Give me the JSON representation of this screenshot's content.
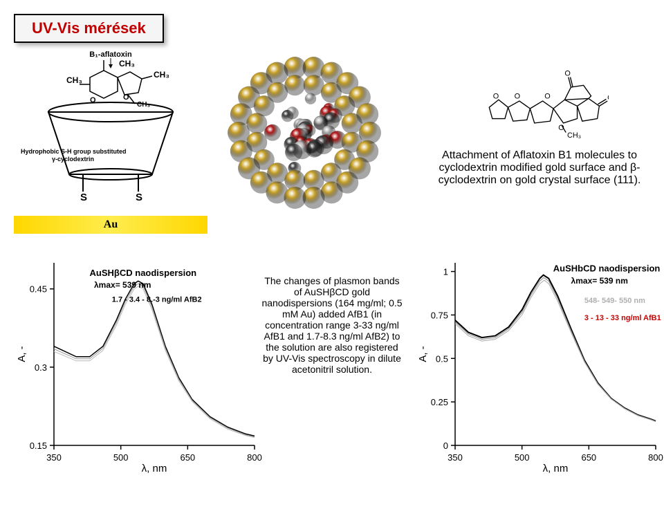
{
  "title": "UV-Vis mérések",
  "top": {
    "cyclodextrin": {
      "aflatoxin_label": "B₁-aflatoxin",
      "ch3_labels": [
        "CH₃",
        "CH₃",
        "CH₃",
        "CH₃"
      ],
      "o_labels": [
        "O",
        "O"
      ],
      "substitute_label": "Hydrophobic S-H group substituted γ-cyclodextrin",
      "s_labels": [
        "S",
        "S"
      ],
      "au_label": "Au"
    },
    "structural_formula": {
      "atoms": [
        "O",
        "O",
        "O",
        "O",
        "O",
        "O"
      ],
      "substituent": "CH₃"
    },
    "description": "Attachment of Aflatoxin B1 molecules to cyclodextrin modified gold surface and β-cyclodextrin on gold crystal surface (111)."
  },
  "chart_left": {
    "type": "line",
    "title": "AuSHβCD naodispersion",
    "lambda_label": "λmax= 539 nm",
    "series_note": "1.7 - 3.4 - 8.-3 ng/ml AfB2",
    "xlabel": "λ, nm",
    "ylabel": "A, -",
    "xlim": [
      350,
      800
    ],
    "ylim": [
      0.15,
      0.5
    ],
    "xticks": [
      350,
      500,
      650,
      800
    ],
    "yticks": [
      0.15,
      0.3,
      0.45
    ],
    "series": [
      {
        "color": "#000000",
        "width": 1.5,
        "data": [
          [
            350,
            0.34
          ],
          [
            400,
            0.32
          ],
          [
            430,
            0.32
          ],
          [
            460,
            0.34
          ],
          [
            490,
            0.39
          ],
          [
            510,
            0.43
          ],
          [
            530,
            0.46
          ],
          [
            539,
            0.465
          ],
          [
            550,
            0.46
          ],
          [
            570,
            0.42
          ],
          [
            600,
            0.34
          ],
          [
            630,
            0.28
          ],
          [
            660,
            0.238
          ],
          [
            700,
            0.205
          ],
          [
            740,
            0.185
          ],
          [
            780,
            0.172
          ],
          [
            800,
            0.168
          ]
        ]
      },
      {
        "color": "#999999",
        "width": 1,
        "data": [
          [
            350,
            0.335
          ],
          [
            400,
            0.316
          ],
          [
            430,
            0.316
          ],
          [
            460,
            0.336
          ],
          [
            490,
            0.385
          ],
          [
            510,
            0.425
          ],
          [
            530,
            0.455
          ],
          [
            539,
            0.46
          ],
          [
            550,
            0.455
          ],
          [
            570,
            0.415
          ],
          [
            600,
            0.336
          ],
          [
            630,
            0.277
          ],
          [
            660,
            0.236
          ],
          [
            700,
            0.203
          ],
          [
            740,
            0.183
          ],
          [
            780,
            0.17
          ],
          [
            800,
            0.166
          ]
        ]
      },
      {
        "color": "#bbbbbb",
        "width": 1,
        "data": [
          [
            350,
            0.33
          ],
          [
            400,
            0.312
          ],
          [
            430,
            0.312
          ],
          [
            460,
            0.332
          ],
          [
            490,
            0.38
          ],
          [
            510,
            0.42
          ],
          [
            530,
            0.45
          ],
          [
            539,
            0.455
          ],
          [
            550,
            0.45
          ],
          [
            570,
            0.41
          ],
          [
            600,
            0.332
          ],
          [
            630,
            0.274
          ],
          [
            660,
            0.234
          ],
          [
            700,
            0.201
          ],
          [
            740,
            0.181
          ],
          [
            780,
            0.169
          ],
          [
            800,
            0.165
          ]
        ]
      }
    ],
    "curve_colors": [
      "#000000",
      "#999999",
      "#bbbbbb"
    ],
    "bg": "#ffffff",
    "axis_color": "#000000",
    "tick_fontsize": 13,
    "label_fontsize": 15,
    "title_fontsize": 13
  },
  "middle_text": "The changes of plasmon bands of AuSHβCD gold nanodispersions (164 mg/ml; 0.5 mM Au) added AfB1 (in concentration range 3-33 ng/ml AfB1 and 1.7-8.3 ng/ml AfB2) to the solution are also registered by UV-Vis spectroscopy in dilute acetonitril solution.",
  "chart_right": {
    "type": "line",
    "title": "AuSHbCD naodispersion",
    "lambda_label": "λmax= 539 nm",
    "peak_note": "548- 549- 550 nm",
    "series_note": "3 - 13 - 33 ng/ml AfB1",
    "xlabel": "λ, nm",
    "ylabel": "A, -",
    "xlim": [
      350,
      800
    ],
    "ylim": [
      0,
      1.05
    ],
    "xticks": [
      350,
      500,
      650,
      800
    ],
    "yticks": [
      0,
      0.25,
      0.5,
      0.75,
      1
    ],
    "series": [
      {
        "color": "#000000",
        "width": 2,
        "data": [
          [
            350,
            0.72
          ],
          [
            380,
            0.65
          ],
          [
            410,
            0.62
          ],
          [
            440,
            0.63
          ],
          [
            470,
            0.68
          ],
          [
            500,
            0.78
          ],
          [
            520,
            0.88
          ],
          [
            540,
            0.96
          ],
          [
            548,
            0.98
          ],
          [
            560,
            0.96
          ],
          [
            580,
            0.86
          ],
          [
            610,
            0.67
          ],
          [
            640,
            0.49
          ],
          [
            670,
            0.36
          ],
          [
            700,
            0.27
          ],
          [
            730,
            0.215
          ],
          [
            760,
            0.175
          ],
          [
            790,
            0.15
          ],
          [
            800,
            0.14
          ]
        ]
      },
      {
        "color": "#888888",
        "width": 1,
        "data": [
          [
            350,
            0.71
          ],
          [
            380,
            0.64
          ],
          [
            410,
            0.61
          ],
          [
            440,
            0.62
          ],
          [
            470,
            0.67
          ],
          [
            500,
            0.765
          ],
          [
            520,
            0.865
          ],
          [
            540,
            0.945
          ],
          [
            549,
            0.965
          ],
          [
            560,
            0.945
          ],
          [
            580,
            0.845
          ],
          [
            610,
            0.66
          ],
          [
            640,
            0.485
          ],
          [
            670,
            0.356
          ],
          [
            700,
            0.268
          ],
          [
            730,
            0.213
          ],
          [
            760,
            0.173
          ],
          [
            790,
            0.148
          ],
          [
            800,
            0.138
          ]
        ]
      },
      {
        "color": "#aaaaaa",
        "width": 1,
        "data": [
          [
            350,
            0.7
          ],
          [
            380,
            0.63
          ],
          [
            410,
            0.6
          ],
          [
            440,
            0.61
          ],
          [
            470,
            0.66
          ],
          [
            500,
            0.75
          ],
          [
            520,
            0.85
          ],
          [
            540,
            0.93
          ],
          [
            550,
            0.95
          ],
          [
            560,
            0.93
          ],
          [
            580,
            0.83
          ],
          [
            610,
            0.65
          ],
          [
            640,
            0.48
          ],
          [
            670,
            0.352
          ],
          [
            700,
            0.266
          ],
          [
            730,
            0.211
          ],
          [
            760,
            0.171
          ],
          [
            790,
            0.146
          ],
          [
            800,
            0.136
          ]
        ]
      }
    ],
    "bg": "#ffffff",
    "axis_color": "#000000",
    "tick_fontsize": 13,
    "label_fontsize": 15,
    "title_fontsize": 13,
    "note_color_gray": "#b0b0b0",
    "note_color_red": "#cc0000"
  },
  "nanoparticle": {
    "gold_color": "#c9a227",
    "red_color": "#b01818",
    "gray_color": "#b8b8b8",
    "dark_color": "#404040"
  }
}
